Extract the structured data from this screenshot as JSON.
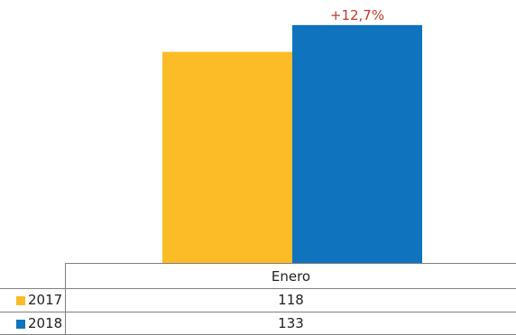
{
  "chart_data": {
    "type": "bar",
    "categories": [
      "Enero"
    ],
    "series": [
      {
        "name": "2017",
        "values": [
          118
        ],
        "color": "#FBBC28"
      },
      {
        "name": "2018",
        "values": [
          133
        ],
        "color": "#0F73BE"
      }
    ],
    "annotation": "+12,7%",
    "annotation_color": "#C0392B",
    "ylim": [
      0,
      145
    ],
    "legend": "data-table-below",
    "grid": false,
    "title": "",
    "xlabel": "",
    "ylabel": ""
  },
  "table": {
    "rows": [
      {
        "key": "2017",
        "value": "118"
      },
      {
        "key": "2018",
        "value": "133"
      }
    ]
  }
}
